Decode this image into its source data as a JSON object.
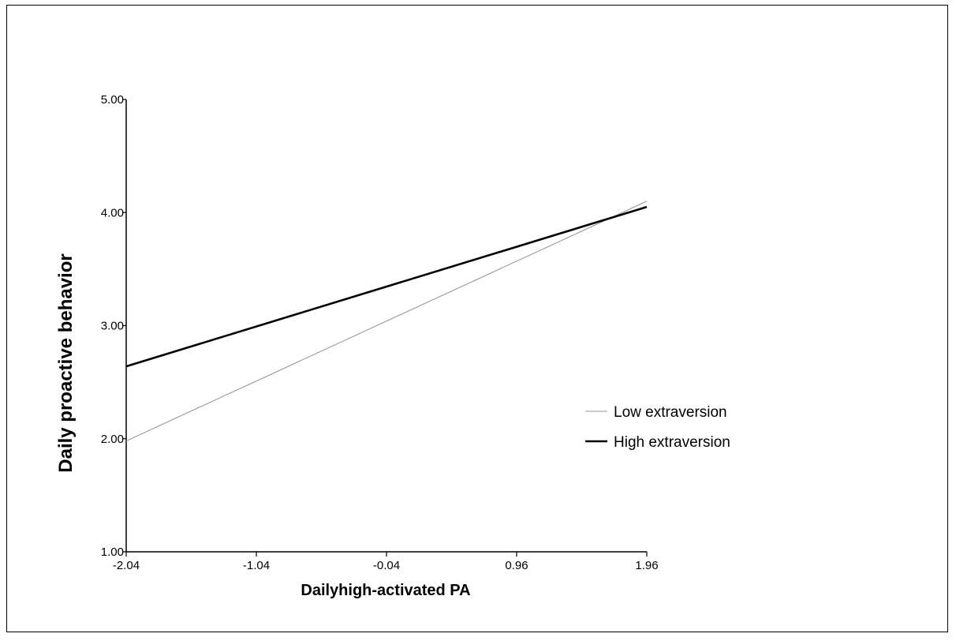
{
  "chart_data": {
    "type": "line",
    "xlabel": "Dailyhigh-activated PA",
    "ylabel": "Daily proactive behavior",
    "x": [
      -2.04,
      1.96
    ],
    "x_ticks": [
      "-2.04",
      "-1.04",
      "-0.04",
      "0.96",
      "1.96"
    ],
    "x_tick_values": [
      -2.04,
      -1.04,
      -0.04,
      0.96,
      1.96
    ],
    "y_ticks": [
      "1.00",
      "2.00",
      "3.00",
      "4.00",
      "5.00"
    ],
    "y_tick_values": [
      1,
      2,
      3,
      4,
      5
    ],
    "xlim": [
      -2.04,
      1.96
    ],
    "ylim": [
      1,
      5
    ],
    "grid": false,
    "legend_position": "right",
    "series": [
      {
        "name": "Low extraversion",
        "values": [
          1.98,
          4.1
        ],
        "color": "#999999",
        "style": "thin"
      },
      {
        "name": "High extraversion",
        "values": [
          2.64,
          4.05
        ],
        "color": "#000000",
        "style": "thick"
      }
    ]
  }
}
